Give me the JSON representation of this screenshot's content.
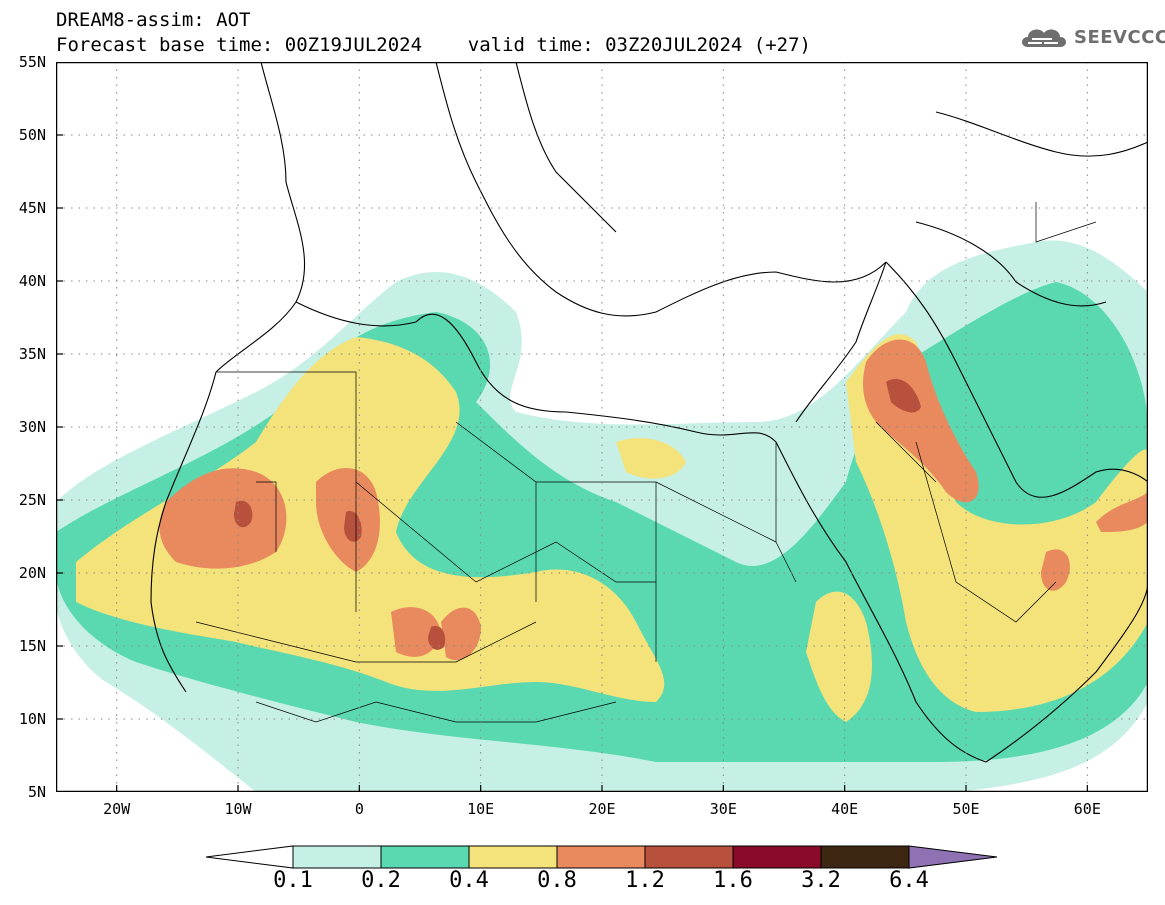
{
  "header": {
    "line1": "DREAM8-assim: AOT",
    "line2": "Forecast base time: 00Z19JUL2024    valid time: 03Z20JUL2024 (+27)"
  },
  "logo": {
    "text": "SEEVCCC",
    "icon": "cloud-icon",
    "color": "#6e6e6e"
  },
  "axes": {
    "lat_labels": [
      "55N",
      "50N",
      "45N",
      "40N",
      "35N",
      "30N",
      "25N",
      "20N",
      "15N",
      "10N",
      "5N"
    ],
    "lon_labels": [
      "20W",
      "10W",
      "0",
      "10E",
      "20E",
      "30E",
      "40E",
      "50E",
      "60E"
    ]
  },
  "colorbar": {
    "labels": [
      "0.1",
      "0.2",
      "0.4",
      "0.8",
      "1.2",
      "1.6",
      "3.2",
      "6.4"
    ],
    "colors": [
      "#c6f0e6",
      "#5ad9b0",
      "#f4e27a",
      "#e88a5e",
      "#b8503e",
      "#8a0a2a",
      "#3d2712",
      "#8e72b2"
    ],
    "low_arrow_color": "#ffffff"
  },
  "palette": {
    "background": "#ffffff",
    "border": "#000000",
    "gridline": "#888888"
  },
  "chart_data": {
    "type": "heatmap",
    "variable": "AOT",
    "lon_range": [
      -25,
      65
    ],
    "lat_range": [
      5,
      55
    ],
    "levels": [
      0.1,
      0.2,
      0.4,
      0.8,
      1.2,
      1.6,
      3.2,
      6.4
    ],
    "highlighted_maxima": [
      {
        "lon": -10,
        "lat": 24,
        "value_class": "1.2-1.6"
      },
      {
        "lon": 0,
        "lat": 23,
        "value_class": "1.2-1.6"
      },
      {
        "lon": 7,
        "lat": 15,
        "value_class": "1.2-1.6"
      },
      {
        "lon": 44.5,
        "lat": 31.5,
        "value_class": "1.2-1.6"
      },
      {
        "lon": 55,
        "lat": 20,
        "value_class": "0.8-1.2"
      }
    ]
  }
}
